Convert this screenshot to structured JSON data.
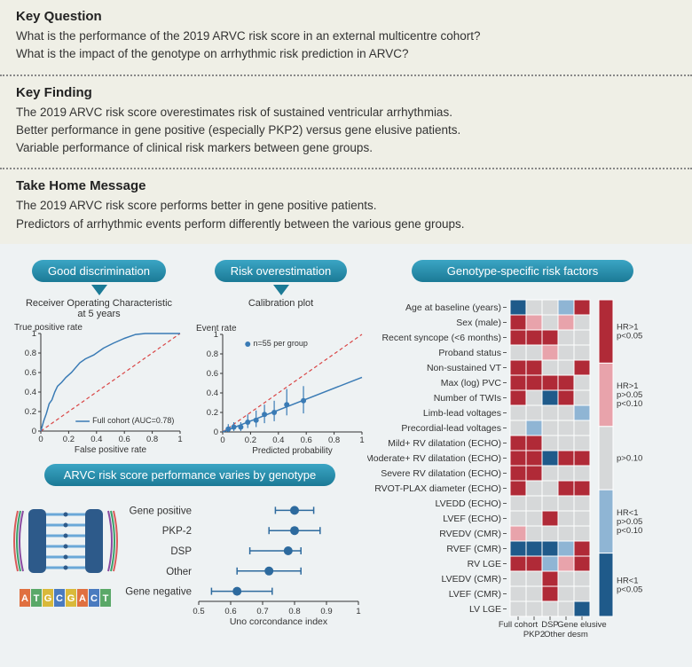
{
  "sections": {
    "key_question": {
      "title": "Key Question",
      "lines": [
        "What is the performance of the 2019 ARVC risk score in an external multicentre cohort?",
        "What is the impact of the genotype on arrhythmic risk prediction in ARVC?"
      ]
    },
    "key_finding": {
      "title": "Key Finding",
      "lines": [
        "The 2019 ARVC risk score overestimates risk of sustained ventricular arrhythmias.",
        "Better performance in gene positive (especially PKP2) versus gene elusive patients.",
        "Variable performance of clinical risk markers between gene groups."
      ]
    },
    "take_home": {
      "title": "Take Home Message",
      "lines": [
        "The 2019 ARVC risk score performs better in gene positive patients.",
        "Predictors of arrhythmic events perform differently between the various gene groups."
      ]
    }
  },
  "pills": {
    "discrimination": "Good discrimination",
    "overestimation": "Risk overestimation",
    "genotype_factors": "Genotype-specific risk factors",
    "varies": "ARVC risk score performance varies by genotype"
  },
  "roc": {
    "subtitle": "Receiver Operating Characteristic\nat 5 years",
    "ylabel": "True positive rate",
    "xlabel": "False positive rate",
    "legend": "Full cohort (AUC=0.78)",
    "xlim": [
      0,
      1
    ],
    "ylim": [
      0,
      1
    ],
    "ticks": [
      0,
      0.2,
      0.4,
      0.6,
      0.8,
      1.0
    ],
    "curve": [
      [
        0,
        0
      ],
      [
        0.02,
        0.1
      ],
      [
        0.04,
        0.18
      ],
      [
        0.06,
        0.28
      ],
      [
        0.08,
        0.32
      ],
      [
        0.1,
        0.4
      ],
      [
        0.12,
        0.46
      ],
      [
        0.15,
        0.5
      ],
      [
        0.18,
        0.55
      ],
      [
        0.22,
        0.6
      ],
      [
        0.28,
        0.7
      ],
      [
        0.32,
        0.74
      ],
      [
        0.38,
        0.78
      ],
      [
        0.45,
        0.85
      ],
      [
        0.52,
        0.9
      ],
      [
        0.6,
        0.95
      ],
      [
        0.68,
        0.99
      ],
      [
        0.75,
        1.0
      ],
      [
        1.0,
        1.0
      ]
    ],
    "curve_color": "#3a7bb5",
    "diag_color": "#d94545"
  },
  "calib": {
    "subtitle": "Calibration plot",
    "ylabel": "Event rate",
    "xlabel": "Predicted probability",
    "note": "n=55 per group",
    "xlim": [
      0,
      1
    ],
    "ylim": [
      0,
      1
    ],
    "ticks": [
      0,
      0.2,
      0.4,
      0.6,
      0.8,
      1.0
    ],
    "points": [
      {
        "x": 0.04,
        "y": 0.03,
        "lo": 0.0,
        "hi": 0.08
      },
      {
        "x": 0.08,
        "y": 0.05,
        "lo": 0.01,
        "hi": 0.1
      },
      {
        "x": 0.13,
        "y": 0.05,
        "lo": 0.01,
        "hi": 0.1
      },
      {
        "x": 0.18,
        "y": 0.1,
        "lo": 0.04,
        "hi": 0.18
      },
      {
        "x": 0.24,
        "y": 0.12,
        "lo": 0.05,
        "hi": 0.22
      },
      {
        "x": 0.3,
        "y": 0.18,
        "lo": 0.09,
        "hi": 0.28
      },
      {
        "x": 0.37,
        "y": 0.2,
        "lo": 0.11,
        "hi": 0.32
      },
      {
        "x": 0.46,
        "y": 0.28,
        "lo": 0.17,
        "hi": 0.44
      },
      {
        "x": 0.58,
        "y": 0.32,
        "lo": 0.19,
        "hi": 0.47
      }
    ],
    "fit_slope": 0.56,
    "curve_color": "#3a7bb5",
    "diag_color": "#d94545"
  },
  "forest": {
    "xlabel": "Uno corcondance index",
    "xlim": [
      0.5,
      1.0
    ],
    "ticks": [
      0.5,
      0.6,
      0.7,
      0.8,
      0.9,
      1.0
    ],
    "rows": [
      {
        "label": "Gene positive",
        "est": 0.8,
        "lo": 0.74,
        "hi": 0.86
      },
      {
        "label": "PKP-2",
        "est": 0.8,
        "lo": 0.72,
        "hi": 0.88
      },
      {
        "label": "DSP",
        "est": 0.78,
        "lo": 0.66,
        "hi": 0.82
      },
      {
        "label": "Other",
        "est": 0.72,
        "lo": 0.62,
        "hi": 0.82
      },
      {
        "label": "Gene negative",
        "est": 0.62,
        "lo": 0.54,
        "hi": 0.73
      }
    ],
    "color": "#2d6a9e"
  },
  "dna": {
    "seq": [
      "A",
      "T",
      "G",
      "C",
      "G",
      "A",
      "C",
      "T"
    ],
    "colors": {
      "A": "#e07040",
      "T": "#5aa868",
      "G": "#d9b93a",
      "C": "#4a7bbf"
    }
  },
  "heatmap": {
    "columns": [
      "Full cohort",
      "PKP2",
      "DSP",
      "Other desm",
      "Gene elusive"
    ],
    "rows": [
      "Age at baseline (years)",
      "Sex (male)",
      "Recent syncope (<6 months)",
      "Proband status",
      "Non-sustained VT",
      "Max (log) PVC",
      "Number of TWIs",
      "Limb-lead voltages",
      "Precordial-lead voltages",
      "Mild+ RV dilatation (ECHO)",
      "Moderate+ RV dilatation (ECHO)",
      "Severe RV dilatation (ECHO)",
      "RVOT-PLAX diameter (ECHO)",
      "LVEDD (ECHO)",
      "LVEF (ECHO)",
      "RVEDV (CMR)",
      "RVEF (CMR)",
      "RV LGE",
      "LVEDV (CMR)",
      "LVEF (CMR)",
      "LV LGE"
    ],
    "colors": {
      "R": "#b02a37",
      "r": "#e8a3ab",
      "g": "#d6d8d9",
      "b": "#8fb5d4",
      "B": "#1f5a8a"
    },
    "grid": [
      [
        "B",
        "g",
        "g",
        "b",
        "R"
      ],
      [
        "R",
        "r",
        "g",
        "r",
        "g"
      ],
      [
        "R",
        "R",
        "R",
        "g",
        "g"
      ],
      [
        "g",
        "g",
        "r",
        "g",
        "g"
      ],
      [
        "R",
        "R",
        "g",
        "g",
        "R"
      ],
      [
        "R",
        "R",
        "R",
        "R",
        "g"
      ],
      [
        "R",
        "g",
        "B",
        "R",
        "g"
      ],
      [
        "g",
        "g",
        "g",
        "g",
        "b"
      ],
      [
        "g",
        "b",
        "g",
        "g",
        "g"
      ],
      [
        "R",
        "R",
        "g",
        "g",
        "g"
      ],
      [
        "R",
        "R",
        "B",
        "R",
        "R"
      ],
      [
        "R",
        "R",
        "g",
        "g",
        "g"
      ],
      [
        "R",
        "g",
        "g",
        "R",
        "R"
      ],
      [
        "g",
        "g",
        "g",
        "g",
        "g"
      ],
      [
        "g",
        "g",
        "R",
        "g",
        "g"
      ],
      [
        "r",
        "g",
        "g",
        "g",
        "g"
      ],
      [
        "B",
        "B",
        "B",
        "b",
        "R"
      ],
      [
        "R",
        "R",
        "b",
        "r",
        "R"
      ],
      [
        "g",
        "g",
        "R",
        "g",
        "g"
      ],
      [
        "g",
        "g",
        "R",
        "g",
        "g"
      ],
      [
        "g",
        "g",
        "g",
        "g",
        "B"
      ]
    ],
    "legend": [
      {
        "color": "R",
        "label": "HR>1\np<0.05"
      },
      {
        "color": "r",
        "label": "HR>1\np>0.05\np<0.10"
      },
      {
        "color": "g",
        "label": "p>0.10"
      },
      {
        "color": "b",
        "label": "HR<1\np>0.05\np<0.10"
      },
      {
        "color": "B",
        "label": "HR<1\np<0.05"
      }
    ]
  }
}
